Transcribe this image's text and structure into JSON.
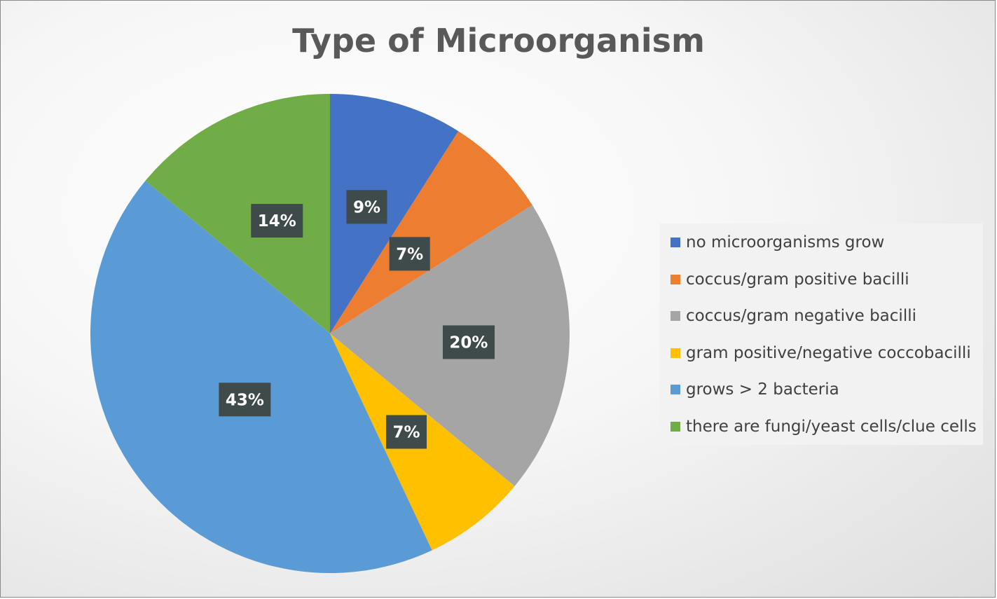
{
  "chart_data": {
    "type": "pie",
    "title": "Type of Microorganism",
    "legend_position": "right",
    "slices": [
      {
        "name": "no microorganisms grow",
        "value": 9,
        "label": "9%",
        "color": "#4472C4"
      },
      {
        "name": "coccus/gram positive bacilli",
        "value": 7,
        "label": "7%",
        "color": "#ED7D31"
      },
      {
        "name": "coccus/gram negative bacilli",
        "value": 20,
        "label": "20%",
        "color": "#A5A5A5"
      },
      {
        "name": "gram positive/negative coccobacilli",
        "value": 7,
        "label": "7%",
        "color": "#FFC000"
      },
      {
        "name": "grows > 2 bacteria",
        "value": 43,
        "label": "43%",
        "color": "#5B9BD5"
      },
      {
        "name": "there are fungi/yeast cells/clue cells",
        "value": 14,
        "label": "14%",
        "color": "#70AD47"
      }
    ]
  }
}
